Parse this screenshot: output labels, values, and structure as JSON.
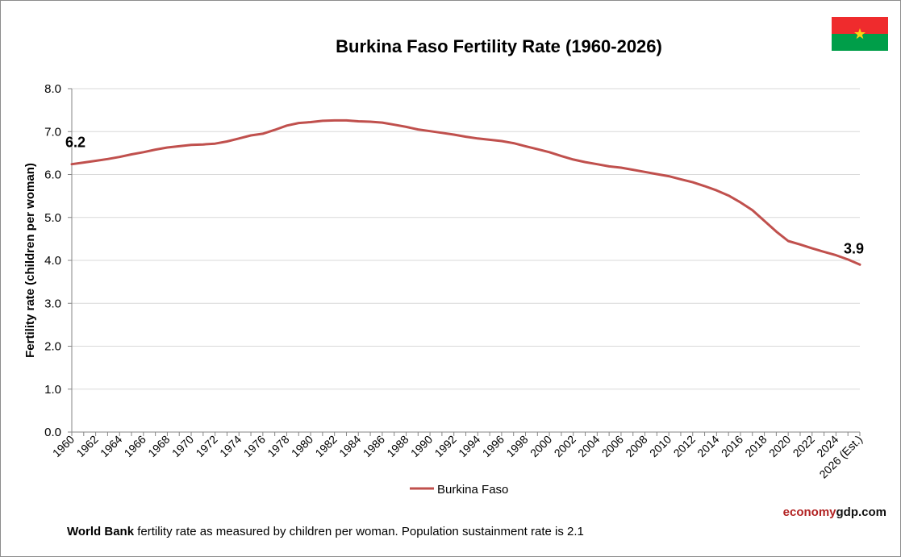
{
  "chart_data": {
    "type": "line",
    "title": "Burkina Faso Fertility Rate (1960-2026)",
    "ylabel": "Fertility rate (children per woman)",
    "xlabel": "",
    "ylim": [
      0,
      8
    ],
    "y_ticks": [
      "0.0",
      "1.0",
      "2.0",
      "3.0",
      "4.0",
      "5.0",
      "6.0",
      "7.0",
      "8.0"
    ],
    "x_tick_labels": [
      "1960",
      "1962",
      "1964",
      "1966",
      "1968",
      "1970",
      "1972",
      "1974",
      "1976",
      "1978",
      "1980",
      "1982",
      "1984",
      "1986",
      "1988",
      "1990",
      "1992",
      "1994",
      "1996",
      "1998",
      "2000",
      "2002",
      "2004",
      "2006",
      "2008",
      "2010",
      "2012",
      "2014",
      "2016",
      "2018",
      "2020",
      "2022",
      "2024",
      "2026 (Est.)"
    ],
    "grid": "horizontal",
    "legend_position": "bottom",
    "series": [
      {
        "name": "Burkina Faso",
        "color": "#c0504d",
        "x": [
          1960,
          1961,
          1962,
          1963,
          1964,
          1965,
          1966,
          1967,
          1968,
          1969,
          1970,
          1971,
          1972,
          1973,
          1974,
          1975,
          1976,
          1977,
          1978,
          1979,
          1980,
          1981,
          1982,
          1983,
          1984,
          1985,
          1986,
          1987,
          1988,
          1989,
          1990,
          1991,
          1992,
          1993,
          1994,
          1995,
          1996,
          1997,
          1998,
          1999,
          2000,
          2001,
          2002,
          2003,
          2004,
          2005,
          2006,
          2007,
          2008,
          2009,
          2010,
          2011,
          2012,
          2013,
          2014,
          2015,
          2016,
          2017,
          2018,
          2019,
          2020,
          2021,
          2022,
          2023,
          2024,
          2025,
          2026
        ],
        "values": [
          6.24,
          6.28,
          6.32,
          6.36,
          6.41,
          6.47,
          6.52,
          6.58,
          6.63,
          6.66,
          6.69,
          6.7,
          6.72,
          6.77,
          6.84,
          6.91,
          6.95,
          7.04,
          7.14,
          7.2,
          7.22,
          7.25,
          7.26,
          7.26,
          7.24,
          7.23,
          7.21,
          7.16,
          7.11,
          7.05,
          7.01,
          6.97,
          6.93,
          6.88,
          6.84,
          6.81,
          6.78,
          6.73,
          6.66,
          6.59,
          6.52,
          6.43,
          6.35,
          6.29,
          6.24,
          6.19,
          6.16,
          6.11,
          6.06,
          6.01,
          5.96,
          5.89,
          5.82,
          5.73,
          5.63,
          5.51,
          5.35,
          5.17,
          4.92,
          4.67,
          4.45,
          4.37,
          4.28,
          4.2,
          4.12,
          4.02,
          3.9
        ]
      }
    ],
    "annotations": [
      {
        "text": "6.2",
        "x": 1960,
        "y": 6.24
      },
      {
        "text": "3.9",
        "x": 2026,
        "y": 3.9
      }
    ],
    "legend": [
      {
        "label": "Burkina Faso",
        "color": "#c0504d"
      }
    ]
  },
  "branding": {
    "part1": "economy",
    "part2": "gdp.com"
  },
  "footnote": {
    "bold": "World Bank",
    "text": " fertility rate as measured by children per woman.  Population  sustainment  rate is 2.1"
  },
  "flag": {
    "name": "Burkina Faso flag",
    "top_color": "#ef2b2d",
    "bottom_color": "#009e49",
    "star_color": "#fcd116"
  }
}
